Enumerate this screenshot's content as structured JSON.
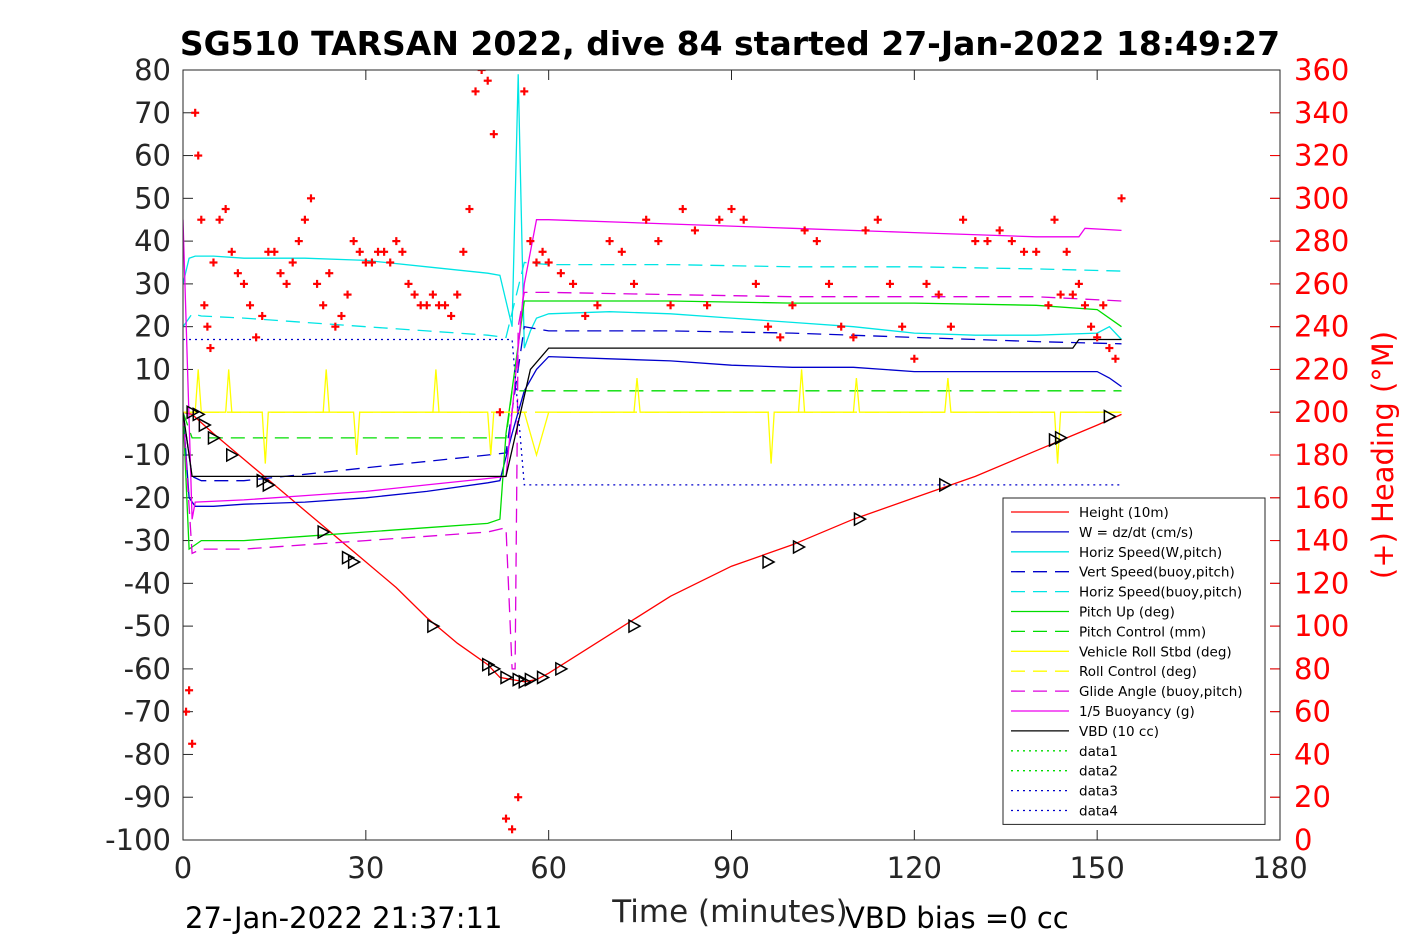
{
  "chart_data": {
    "type": "line",
    "title": "SG510 TARSAN 2022, dive 84 started 27-Jan-2022 18:49:27",
    "xlabel": "Time (minutes)",
    "ylabel": "",
    "ylabel_right": "(+) Heading (°M)",
    "xlim": [
      0,
      180
    ],
    "ylim": [
      -100,
      80
    ],
    "ylim_right": [
      0,
      360
    ],
    "xticks": [
      "0",
      "30",
      "60",
      "90",
      "120",
      "150",
      "180"
    ],
    "yticks": [
      "80",
      "70",
      "60",
      "50",
      "40",
      "30",
      "20",
      "10",
      "0",
      "-10",
      "-20",
      "-30",
      "-40",
      "-50",
      "-60",
      "-70",
      "-80",
      "-90",
      "-100"
    ],
    "yticks_right": [
      "360",
      "340",
      "320",
      "300",
      "280",
      "260",
      "240",
      "220",
      "200",
      "180",
      "160",
      "140",
      "120",
      "100",
      "80",
      "60",
      "40",
      "20",
      "0"
    ],
    "legend_position": "lower-right",
    "footer_left": "27-Jan-2022 21:37:11",
    "footer_right": "VBD bias =0 cc",
    "colors": {
      "heading": "#ff0000",
      "right_axis": "#ff0000"
    },
    "series": [
      {
        "name": "Height (10m)",
        "color": "#ff0000",
        "style": "solid",
        "x": [
          0,
          1.5,
          5,
          10,
          15,
          20,
          25,
          30,
          35,
          40,
          45,
          50,
          52,
          54,
          56,
          58,
          60,
          70,
          80,
          90,
          100,
          110,
          120,
          130,
          140,
          145,
          150,
          154
        ],
        "y": [
          0,
          -0.5,
          -5,
          -11,
          -17,
          -23,
          -29,
          -35,
          -41,
          -48,
          -54,
          -59,
          -62,
          -62.5,
          -63,
          -62.5,
          -61,
          -52,
          -43,
          -36,
          -31,
          -25,
          -20,
          -15,
          -9,
          -6,
          -3,
          -0.5
        ]
      },
      {
        "name": "W = dz/dt (cm/s)",
        "color": "#0000cc",
        "style": "solid",
        "x": [
          0,
          1,
          2,
          5,
          10,
          20,
          30,
          40,
          50,
          52,
          54,
          56,
          58,
          60,
          70,
          80,
          90,
          100,
          110,
          120,
          130,
          140,
          150,
          152,
          154
        ],
        "y": [
          0,
          -20,
          -22,
          -22,
          -21.5,
          -21,
          -20,
          -18.5,
          -16.5,
          -16,
          -5,
          5,
          10,
          13,
          12.5,
          12,
          11,
          10.5,
          10.5,
          9.5,
          9.5,
          9.5,
          9.5,
          8,
          6
        ]
      },
      {
        "name": "Horiz Speed(W,pitch)",
        "color": "#00e5e5",
        "style": "solid",
        "x": [
          0,
          1,
          2,
          5,
          10,
          20,
          30,
          40,
          50,
          52,
          54,
          55,
          56,
          57,
          58,
          60,
          70,
          80,
          90,
          100,
          110,
          120,
          130,
          140,
          150,
          152,
          154
        ],
        "y": [
          30,
          36,
          36.5,
          36.5,
          36,
          36,
          35.5,
          34,
          32.5,
          32,
          20,
          79,
          15,
          19,
          22,
          23,
          23.5,
          23,
          22,
          21,
          20,
          18.5,
          18,
          18,
          18.5,
          20,
          17
        ]
      },
      {
        "name": "Vert Speed(buoy,pitch)",
        "color": "#0000cc",
        "style": "dashed",
        "x": [
          0,
          1.5,
          3,
          10,
          20,
          30,
          40,
          50,
          53,
          56,
          60,
          80,
          100,
          120,
          140,
          154
        ],
        "y": [
          0,
          -15,
          -16,
          -16,
          -14.5,
          -13,
          -11.5,
          -10,
          -9.5,
          20,
          19,
          19,
          18.5,
          17.5,
          16.5,
          16
        ]
      },
      {
        "name": "Horiz Speed(buoy,pitch)",
        "color": "#00e5e5",
        "style": "dashed",
        "x": [
          0,
          1.5,
          3,
          10,
          20,
          30,
          40,
          50,
          53,
          56,
          60,
          80,
          100,
          120,
          140,
          154
        ],
        "y": [
          20,
          23,
          22.5,
          22,
          21,
          20,
          19,
          18,
          17.5,
          35,
          34.5,
          34.5,
          34,
          34,
          33.5,
          33
        ]
      },
      {
        "name": "Pitch Up (deg)",
        "color": "#00dd00",
        "style": "solid",
        "x": [
          0,
          1,
          3,
          10,
          20,
          30,
          40,
          50,
          52,
          53,
          56,
          60,
          80,
          100,
          120,
          140,
          150,
          154
        ],
        "y": [
          0,
          -32,
          -30,
          -30,
          -29,
          -28,
          -27,
          -26,
          -25,
          -5,
          26,
          26,
          26,
          25.5,
          25.5,
          25,
          24,
          20
        ]
      },
      {
        "name": "Pitch Control (mm)",
        "color": "#00dd00",
        "style": "dashed",
        "x": [
          0,
          1.5,
          53,
          54,
          60,
          154
        ],
        "y": [
          0,
          -6,
          -6,
          5,
          5,
          5
        ]
      },
      {
        "name": "Vehicle Roll Stbd (deg)",
        "color": "#ffff00",
        "style": "solid",
        "x": [
          0,
          2,
          2.5,
          3,
          7,
          7.5,
          8,
          13,
          13.5,
          14,
          23,
          23.5,
          24,
          28,
          28.5,
          29,
          41,
          41.5,
          42,
          50,
          50.5,
          51,
          56,
          58,
          60,
          74,
          74.5,
          75,
          96,
          96.5,
          97,
          101,
          101.5,
          102,
          110,
          110.5,
          111,
          125,
          125.5,
          126,
          143,
          143.5,
          144,
          154
        ],
        "y": [
          0,
          0,
          10,
          0,
          0,
          10,
          0,
          0,
          -12,
          0,
          0,
          10,
          0,
          0,
          -10,
          0,
          0,
          10,
          0,
          0,
          -10,
          0,
          0,
          -10,
          0,
          0,
          8,
          0,
          0,
          -12,
          0,
          0,
          10,
          0,
          0,
          8,
          0,
          0,
          8,
          0,
          0,
          -12,
          0,
          0
        ]
      },
      {
        "name": "Roll Control (deg)",
        "color": "#ffff00",
        "style": "dashed",
        "x": [
          0,
          154
        ],
        "y": [
          0,
          0
        ]
      },
      {
        "name": "Glide Angle (buoy,pitch)",
        "color": "#dd00dd",
        "style": "dashed",
        "x": [
          0,
          1.5,
          3,
          10,
          20,
          30,
          40,
          50,
          53,
          54,
          54.5,
          55,
          56,
          60,
          80,
          100,
          120,
          140,
          154
        ],
        "y": [
          0,
          -33,
          -32,
          -32,
          -31,
          -30,
          -29,
          -28,
          -27,
          -60,
          -60,
          20,
          28,
          28,
          27.5,
          27,
          27,
          27,
          26
        ]
      },
      {
        "name": "1/5 Buoyancy (g)",
        "color": "#ee00ee",
        "style": "solid",
        "x": [
          0,
          1.5,
          2,
          10,
          20,
          30,
          40,
          50,
          53,
          56,
          58,
          60,
          80,
          100,
          120,
          140,
          147,
          148,
          154
        ],
        "y": [
          45,
          -25,
          -21,
          -20.5,
          -19.5,
          -18.5,
          -17,
          -15.5,
          -15,
          30,
          45,
          45,
          44,
          43,
          42,
          41,
          41,
          43,
          42.5
        ]
      },
      {
        "name": "VBD (10 cc)",
        "color": "#000000",
        "style": "solid",
        "x": [
          0,
          1.5,
          53,
          57,
          60,
          146,
          147,
          154
        ],
        "y": [
          0,
          -15,
          -15,
          10,
          15,
          15,
          17,
          17
        ]
      },
      {
        "name": "data1",
        "color": "#00dd00",
        "style": "dotted",
        "x": [],
        "y": []
      },
      {
        "name": "data2",
        "color": "#00dd00",
        "style": "dotted",
        "x": [],
        "y": []
      },
      {
        "name": "data3",
        "color": "#0000cc",
        "style": "dotted",
        "x": [
          0,
          54,
          56,
          154
        ],
        "y": [
          17,
          17,
          -17,
          -17
        ]
      },
      {
        "name": "data4",
        "color": "#0000cc",
        "style": "dotted",
        "x": [],
        "y": []
      }
    ],
    "heading": {
      "marker": "+",
      "x": [
        0.5,
        1,
        1.5,
        2,
        2.5,
        3,
        3.5,
        4,
        4.5,
        5,
        6,
        7,
        8,
        9,
        10,
        11,
        12,
        13,
        14,
        15,
        16,
        17,
        18,
        19,
        20,
        21,
        22,
        23,
        24,
        25,
        26,
        27,
        28,
        29,
        30,
        31,
        32,
        33,
        34,
        35,
        36,
        37,
        38,
        39,
        40,
        41,
        42,
        43,
        44,
        45,
        46,
        47,
        48,
        49,
        50,
        51,
        52,
        53,
        54,
        55,
        56,
        57,
        58,
        59,
        60,
        62,
        64,
        66,
        68,
        70,
        72,
        74,
        76,
        78,
        80,
        82,
        84,
        86,
        88,
        90,
        92,
        94,
        96,
        98,
        100,
        102,
        104,
        106,
        108,
        110,
        112,
        114,
        116,
        118,
        120,
        122,
        124,
        126,
        128,
        130,
        132,
        134,
        136,
        138,
        140,
        142,
        143,
        144,
        145,
        146,
        147,
        148,
        149,
        150,
        151,
        152,
        153,
        154
      ],
      "y": [
        60,
        70,
        45,
        340,
        320,
        290,
        250,
        240,
        230,
        270,
        290,
        295,
        275,
        265,
        260,
        250,
        235,
        245,
        275,
        275,
        265,
        260,
        270,
        280,
        290,
        300,
        260,
        250,
        265,
        240,
        245,
        255,
        280,
        275,
        270,
        270,
        275,
        275,
        270,
        280,
        275,
        260,
        255,
        250,
        250,
        255,
        250,
        250,
        245,
        255,
        275,
        295,
        350,
        360,
        355,
        330,
        200,
        10,
        5,
        20,
        350,
        280,
        270,
        275,
        270,
        265,
        260,
        245,
        250,
        280,
        275,
        260,
        290,
        280,
        250,
        295,
        285,
        250,
        290,
        295,
        290,
        260,
        240,
        235,
        250,
        285,
        280,
        260,
        240,
        235,
        285,
        290,
        260,
        240,
        225,
        260,
        255,
        240,
        290,
        280,
        280,
        285,
        280,
        275,
        275,
        250,
        290,
        255,
        275,
        255,
        260,
        250,
        240,
        235,
        250,
        230,
        225,
        300
      ]
    },
    "markers": {
      "style": "triangle",
      "x": [
        1.5,
        2.5,
        3.5,
        5,
        8,
        13,
        14,
        23,
        27,
        28,
        41,
        50,
        51,
        53,
        55,
        56,
        57,
        59,
        62,
        74,
        96,
        101,
        111,
        125,
        143,
        144,
        152
      ],
      "y": [
        0,
        -0.5,
        -3,
        -6,
        -10,
        -16,
        -17,
        -28,
        -34,
        -35,
        -50,
        -59,
        -60,
        -62,
        -62.5,
        -63,
        -62.5,
        -62,
        -60,
        -50,
        -35,
        -31.5,
        -25,
        -17,
        -6.5,
        -6,
        -1
      ]
    }
  }
}
